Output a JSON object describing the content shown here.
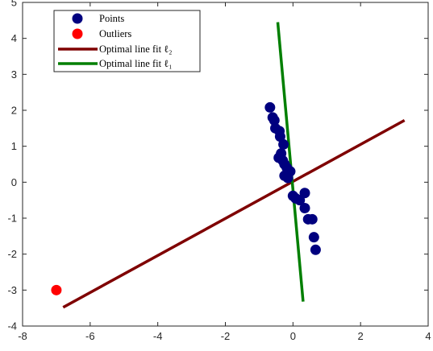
{
  "chart_data": {
    "type": "scatter",
    "title": "",
    "xlabel": "",
    "ylabel": "",
    "xlim": [
      -8,
      4
    ],
    "ylim": [
      -4,
      5
    ],
    "xticks": [
      -8,
      -6,
      -4,
      -2,
      0,
      2,
      4
    ],
    "yticks": [
      -4,
      -3,
      -2,
      -1,
      0,
      1,
      2,
      3,
      4,
      5
    ],
    "grid": false,
    "box": true,
    "legend_position": "top-left",
    "series": [
      {
        "name": "Points",
        "kind": "scatter",
        "color": "#00007f",
        "points": [
          [
            -0.68,
            2.08
          ],
          [
            -0.6,
            1.8
          ],
          [
            -0.55,
            1.72
          ],
          [
            -0.52,
            1.5
          ],
          [
            -0.4,
            1.42
          ],
          [
            -0.38,
            1.27
          ],
          [
            -0.28,
            1.05
          ],
          [
            -0.35,
            0.8
          ],
          [
            -0.42,
            0.68
          ],
          [
            -0.3,
            0.6
          ],
          [
            -0.25,
            0.5
          ],
          [
            -0.18,
            0.4
          ],
          [
            -0.08,
            0.3
          ],
          [
            -0.25,
            0.18
          ],
          [
            -0.15,
            0.12
          ],
          [
            0.0,
            -0.38
          ],
          [
            0.08,
            -0.45
          ],
          [
            0.2,
            -0.5
          ],
          [
            0.35,
            -0.3
          ],
          [
            0.35,
            -0.72
          ],
          [
            0.45,
            -1.03
          ],
          [
            0.57,
            -1.03
          ],
          [
            0.62,
            -1.53
          ],
          [
            0.67,
            -1.88
          ]
        ]
      },
      {
        "name": "Outliers",
        "kind": "scatter",
        "color": "#ff0000",
        "points": [
          [
            -7.0,
            -3.0
          ]
        ]
      },
      {
        "name": "Optimal line fit ℓ₂",
        "kind": "line",
        "color": "#7f0000",
        "points": [
          [
            -6.8,
            -3.48
          ],
          [
            3.3,
            1.72
          ]
        ]
      },
      {
        "name": "Optimal line fit ℓ₁",
        "kind": "line",
        "color": "#007f00",
        "points": [
          [
            -0.45,
            4.45
          ],
          [
            0.3,
            -3.32
          ]
        ]
      }
    ],
    "legend": [
      {
        "label": "Points",
        "marker": "dot",
        "color": "#00007f"
      },
      {
        "label": "Outliers",
        "marker": "dot",
        "color": "#ff0000"
      },
      {
        "label": "Optimal line fit ℓ₂",
        "marker": "line",
        "color": "#7f0000"
      },
      {
        "label": "Optimal line fit ℓ₁",
        "marker": "line",
        "color": "#007f00"
      }
    ]
  }
}
